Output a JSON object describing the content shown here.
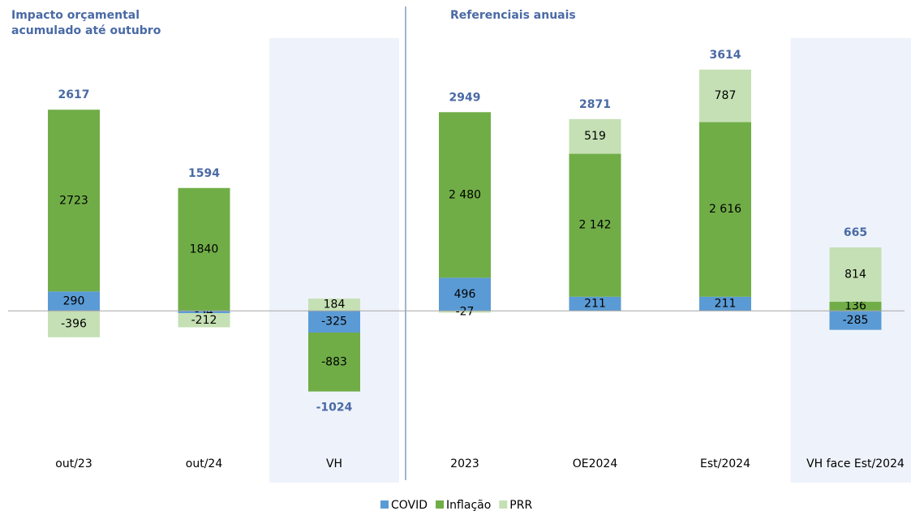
{
  "chart_data": [
    {
      "type": "bar",
      "stacked": true,
      "title": "Impacto orçamental acumulado até outubro",
      "categories": [
        "out/23",
        "out/24",
        "VH"
      ],
      "series": [
        {
          "name": "COVID",
          "color": "#5b9bd5",
          "values": [
            290,
            -34,
            -325
          ]
        },
        {
          "name": "Inflação",
          "color": "#70ad47",
          "values": [
            2723,
            1840,
            -883
          ]
        },
        {
          "name": "PRR",
          "color": "#c5e0b4",
          "values": [
            -396,
            -212,
            184
          ]
        }
      ],
      "totals": [
        2617,
        1594,
        -1024
      ],
      "highlighted": [
        2
      ],
      "ylim": [
        -1200,
        4000
      ]
    },
    {
      "type": "bar",
      "stacked": true,
      "title": "Referenciais anuais",
      "categories": [
        "2023",
        "OE2024",
        "Est/2024",
        "VH face Est/2024"
      ],
      "series": [
        {
          "name": "COVID",
          "color": "#5b9bd5",
          "values": [
            496,
            211,
            211,
            -285
          ]
        },
        {
          "name": "Inflação",
          "color": "#70ad47",
          "values": [
            2480,
            2142,
            2616,
            136
          ],
          "value_labels": [
            "2 480",
            "2 142",
            "2 616",
            "136"
          ]
        },
        {
          "name": "PRR",
          "color": "#c5e0b4",
          "values": [
            -27,
            519,
            787,
            814
          ]
        }
      ],
      "totals": [
        2949,
        2871,
        3614,
        665
      ],
      "highlighted": [
        3
      ],
      "ylim": [
        -1200,
        4000
      ]
    }
  ]
}
